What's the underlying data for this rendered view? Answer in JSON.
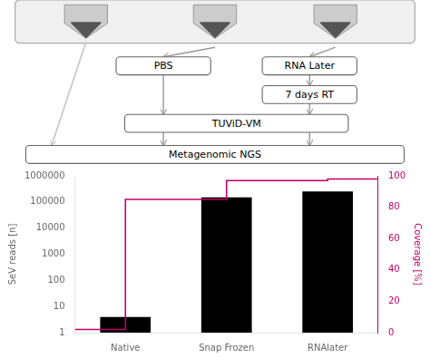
{
  "chart_data": {
    "type": "bar",
    "categories": [
      "Native",
      "Snap Frozen",
      "RNAlater"
    ],
    "series": [
      {
        "color": "#000000",
        "values": [
          4,
          150000,
          250000
        ]
      },
      {
        "type": "line",
        "axis": "y2",
        "color": "#c0006a",
        "x": [
          0.0,
          0.5,
          0.5,
          1.5,
          1.5,
          2.5,
          2.5,
          3.0
        ],
        "values": [
          2,
          2,
          85,
          85,
          97,
          97,
          98,
          98
        ]
      }
    ],
    "xlim": [
      0,
      3.0
    ],
    "ylabel": "SeV reads [n]",
    "y2label": "Coverage [%]",
    "log": "y",
    "ylim": [
      1,
      1000000
    ],
    "yticks": [
      1,
      10,
      100,
      1000,
      10000,
      100000,
      1000000
    ],
    "y2lim": [
      0,
      100
    ],
    "y2ticks": [
      0,
      20,
      40,
      60,
      80,
      100
    ],
    "grid": false,
    "annotations": [
      "PBS",
      "RNA Later",
      "7 days RT",
      "TUViD-VM",
      "Metagenomic NGS"
    ]
  }
}
